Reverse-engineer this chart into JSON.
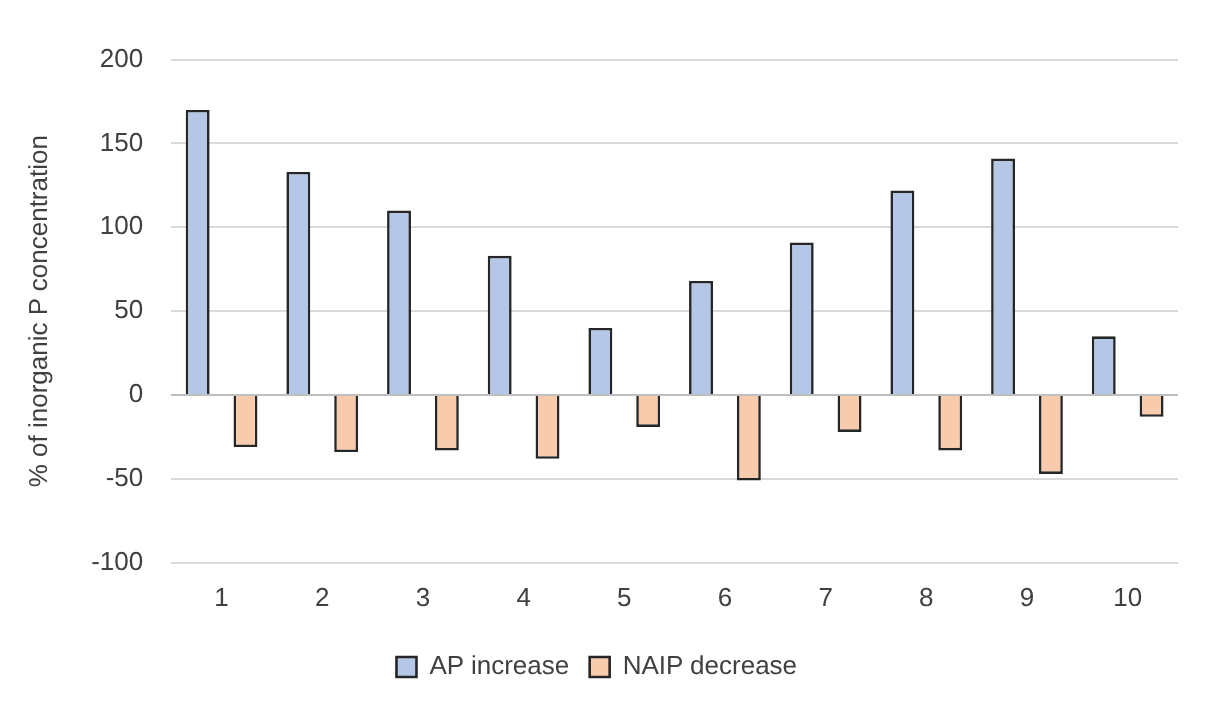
{
  "chart_data": {
    "type": "bar",
    "ylabel": "% of inorganic P concentration",
    "categories": [
      "1",
      "2",
      "3",
      "4",
      "5",
      "6",
      "7",
      "8",
      "9",
      "10"
    ],
    "series": [
      {
        "name": "AP increase",
        "color": "#b4c7e7",
        "values": [
          170,
          133,
          110,
          83,
          40,
          68,
          91,
          122,
          141,
          35
        ]
      },
      {
        "name": "NAIP decrease",
        "color": "#f8cbad",
        "values": [
          -31,
          -34,
          -33,
          -38,
          -19,
          -51,
          -22,
          -33,
          -47,
          -13
        ]
      }
    ],
    "ylim": [
      -100,
      200
    ],
    "yticks": [
      -100,
      -50,
      0,
      50,
      100,
      150,
      200
    ],
    "grid": "y",
    "legend": "bottom"
  }
}
